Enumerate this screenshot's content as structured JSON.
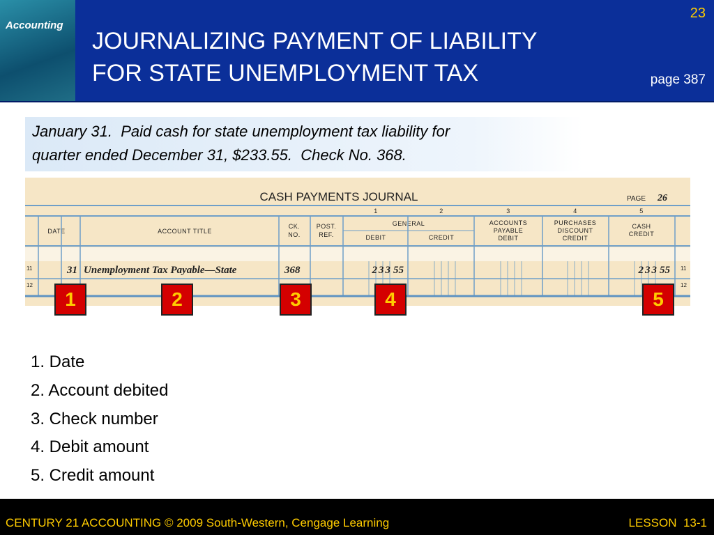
{
  "header": {
    "slide_number": "23",
    "title_lines": [
      "JOURNALIZING PAYMENT OF LIABILITY",
      "FOR STATE UNEMPLOYMENT TAX"
    ],
    "page_ref": "page 387",
    "cover_title": "Accounting"
  },
  "transaction": {
    "lines": [
      "January 31.  Paid cash for state unemployment tax liability for",
      "quarter ended December 31, $233.55.  Check No. 368."
    ]
  },
  "journal": {
    "title": "CASH PAYMENTS JOURNAL",
    "page_label": "PAGE",
    "page": "26",
    "column_numbers": [
      "1",
      "2",
      "3",
      "4",
      "5"
    ],
    "headers": {
      "date": "DATE",
      "account_title": "ACCOUNT TITLE",
      "ck_no": [
        "CK.",
        "NO."
      ],
      "post_ref": [
        "POST.",
        "REF."
      ],
      "general": "GENERAL",
      "debit": "DEBIT",
      "credit": "CREDIT",
      "accounts_payable": [
        "ACCOUNTS",
        "PAYABLE",
        "DEBIT"
      ],
      "purchases_discount": [
        "PURCHASES",
        "DISCOUNT",
        "CREDIT"
      ],
      "cash": [
        "CASH",
        "CREDIT"
      ]
    },
    "row_numbers": [
      "11",
      "12"
    ],
    "entry": {
      "day": "31",
      "account": "Unemployment Tax Payable—State",
      "check": "368",
      "debit_dollars": "233",
      "debit_cents": "55",
      "credit_dollars": "233",
      "credit_cents": "55"
    }
  },
  "callouts": [
    "1",
    "2",
    "3",
    "4",
    "5"
  ],
  "steps": [
    "1. Date",
    "2. Account debited",
    "3. Check number",
    "4. Debit amount",
    "5. Credit amount"
  ],
  "footer": {
    "left": "CENTURY 21 ACCOUNTING © 2009 South-Western, Cengage Learning",
    "right": "LESSON  13-1"
  }
}
